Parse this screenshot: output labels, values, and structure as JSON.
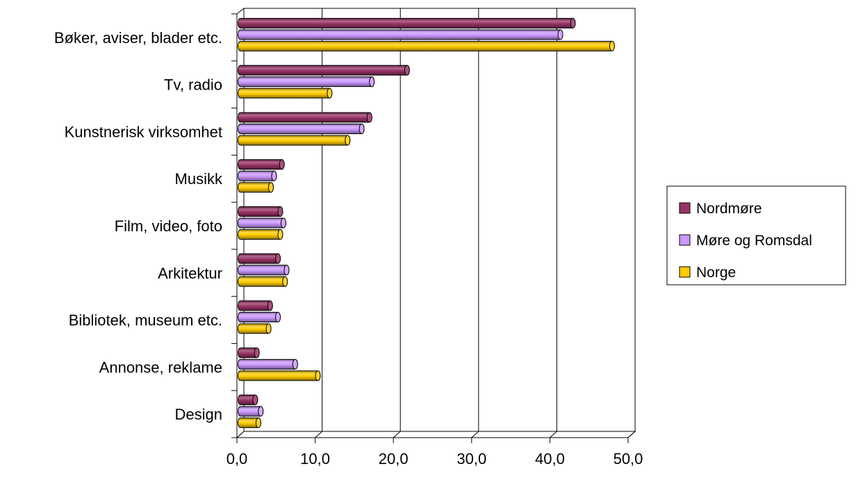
{
  "chart_data": {
    "type": "bar",
    "orientation": "horizontal",
    "style": "3d-cylinder",
    "categories": [
      "Bøker, aviser, blader etc.",
      "Tv, radio",
      "Kunstnerisk virksomhet",
      "Musikk",
      "Film, video, foto",
      "Arkitektur",
      "Bibliotek, museum etc.",
      "Annonse, reklame",
      "Design"
    ],
    "series": [
      {
        "name": "Nordmøre",
        "color": "#993366",
        "values": [
          42.5,
          21.3,
          16.5,
          5.3,
          5.1,
          4.8,
          3.8,
          2.1,
          1.9
        ]
      },
      {
        "name": "Møre og Romsdal",
        "color": "#CC99FF",
        "values": [
          40.9,
          16.8,
          15.5,
          4.3,
          5.5,
          5.9,
          4.8,
          7.0,
          2.6
        ]
      },
      {
        "name": "Norge",
        "color": "#FFCC00",
        "values": [
          47.5,
          11.4,
          13.7,
          3.9,
          5.1,
          5.7,
          3.6,
          9.9,
          2.3
        ]
      }
    ],
    "xlim": [
      0,
      50
    ],
    "x_ticks": [
      "0,0",
      "10,0",
      "20,0",
      "30,0",
      "40,0",
      "50,0"
    ],
    "xlabel": "",
    "ylabel": "",
    "title": "",
    "grid": true,
    "legend_position": "right"
  }
}
